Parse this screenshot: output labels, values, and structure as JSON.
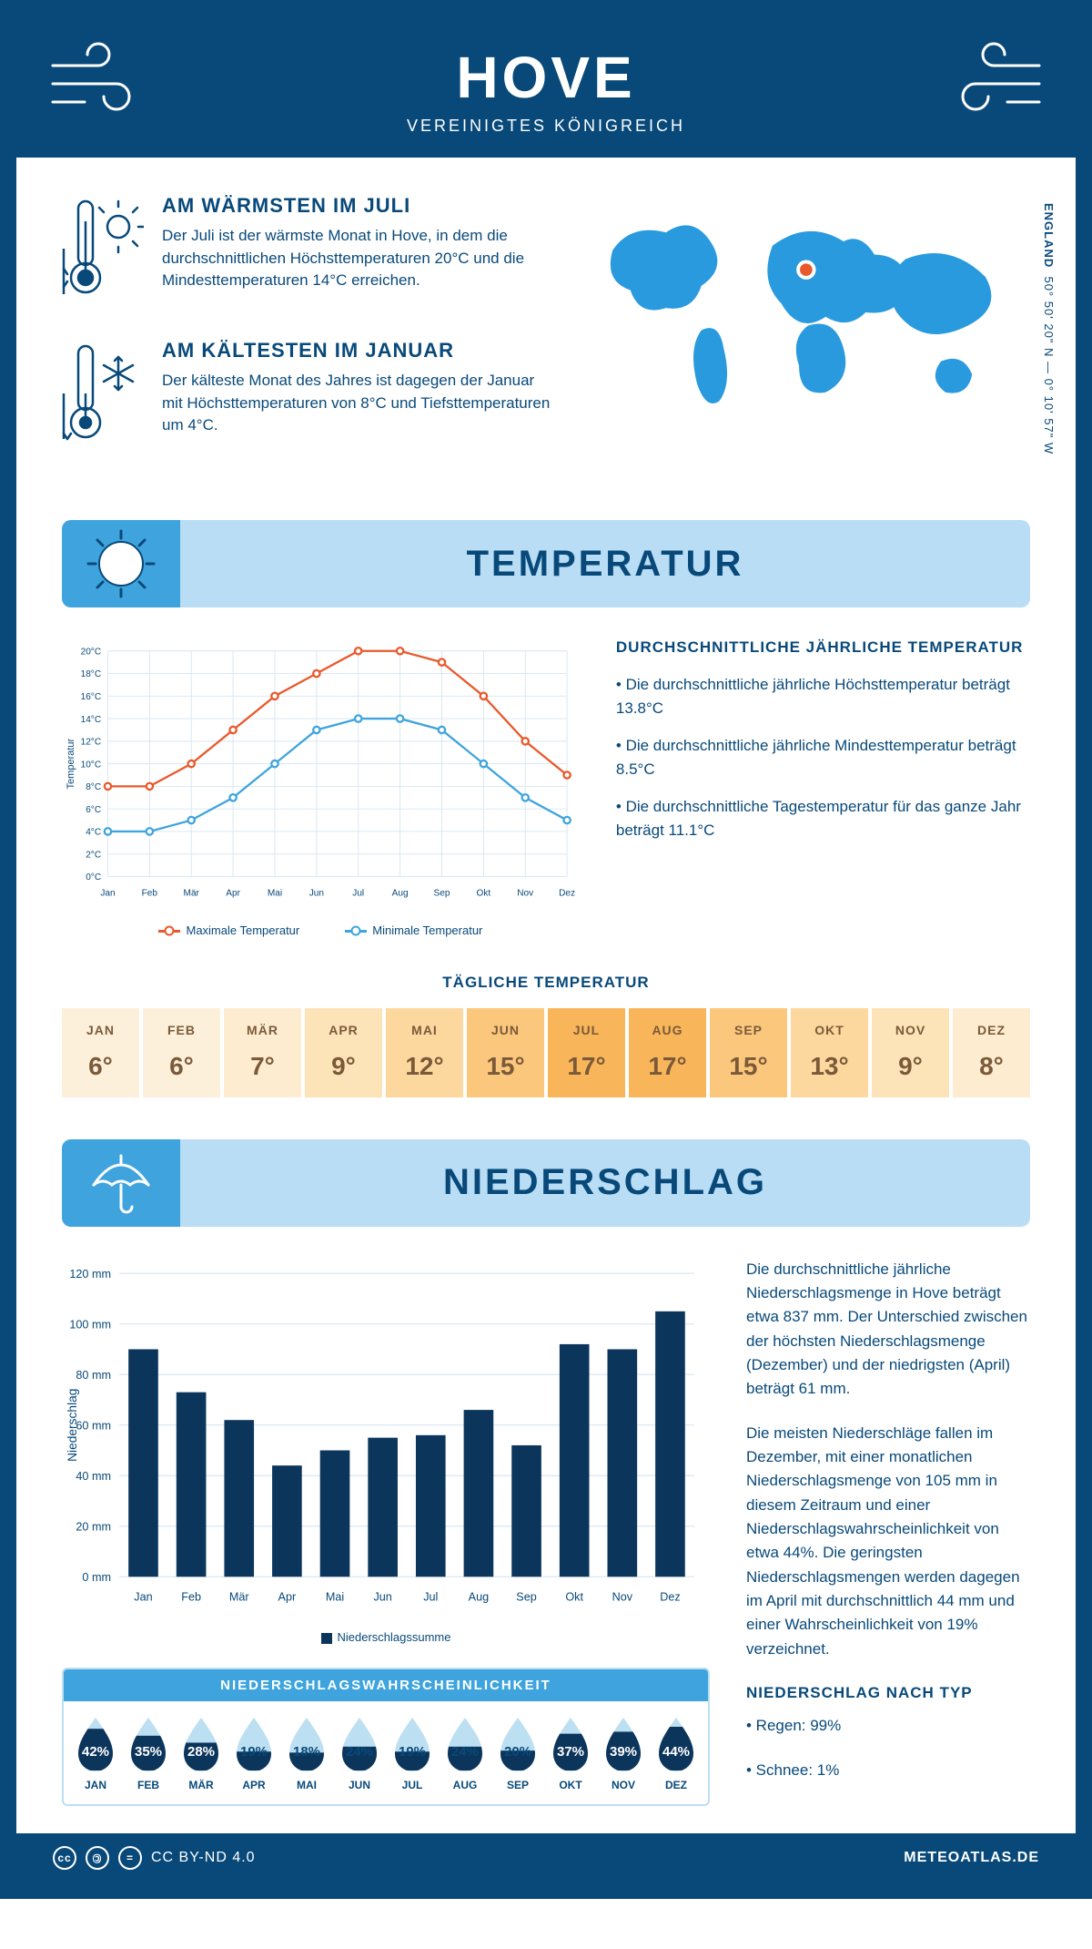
{
  "header": {
    "title": "HOVE",
    "subtitle": "VEREINIGTES KÖNIGREICH"
  },
  "coords": {
    "line": "50° 50' 20\" N — 0° 10' 57\" W",
    "country": "ENGLAND"
  },
  "facts": {
    "warm": {
      "title": "AM WÄRMSTEN IM JULI",
      "text": "Der Juli ist der wärmste Monat in Hove, in dem die durchschnittlichen Höchsttemperaturen 20°C und die Mindesttemperaturen 14°C erreichen."
    },
    "cold": {
      "title": "AM KÄLTESTEN IM JANUAR",
      "text": "Der kälteste Monat des Jahres ist dagegen der Januar mit Höchsttemperaturen von 8°C und Tiefsttemperaturen um 4°C."
    }
  },
  "sections": {
    "temp": "TEMPERATUR",
    "precip": "NIEDERSCHLAG"
  },
  "temp_chart": {
    "type": "line",
    "months": [
      "Jan",
      "Feb",
      "Mär",
      "Apr",
      "Mai",
      "Jun",
      "Jul",
      "Aug",
      "Sep",
      "Okt",
      "Nov",
      "Dez"
    ],
    "max_series": [
      8,
      8,
      10,
      13,
      16,
      18,
      20,
      20,
      19,
      16,
      12,
      9
    ],
    "min_series": [
      4,
      4,
      5,
      7,
      10,
      13,
      14,
      14,
      13,
      10,
      7,
      5
    ],
    "max_color": "#e8592b",
    "min_color": "#3fa4dd",
    "grid_color": "#d7e6f2",
    "ylim": [
      0,
      20
    ],
    "ytick_step": 2,
    "y_label": "Temperatur",
    "legend_max": "Maximale Temperatur",
    "legend_min": "Minimale Temperatur"
  },
  "temp_facts": {
    "heading": "DURCHSCHNITTLICHE JÄHRLICHE TEMPERATUR",
    "b1": "• Die durchschnittliche jährliche Höchsttemperatur beträgt 13.8°C",
    "b2": "• Die durchschnittliche jährliche Mindesttemperatur beträgt 8.5°C",
    "b3": "• Die durchschnittliche Tagestemperatur für das ganze Jahr beträgt 11.1°C"
  },
  "daily_temp": {
    "title": "TÄGLICHE TEMPERATUR",
    "months": [
      "JAN",
      "FEB",
      "MÄR",
      "APR",
      "MAI",
      "JUN",
      "JUL",
      "AUG",
      "SEP",
      "OKT",
      "NOV",
      "DEZ"
    ],
    "values": [
      "6°",
      "6°",
      "7°",
      "9°",
      "12°",
      "15°",
      "17°",
      "17°",
      "15°",
      "13°",
      "9°",
      "8°"
    ],
    "colors": [
      "#fdf0db",
      "#fdf0db",
      "#fdeccf",
      "#fde3b8",
      "#fcd79e",
      "#fbc77c",
      "#f9b55a",
      "#f9b55a",
      "#fbc77c",
      "#fcd79e",
      "#fde3b8",
      "#fdeccf"
    ]
  },
  "precip_chart": {
    "type": "bar",
    "months": [
      "Jan",
      "Feb",
      "Mär",
      "Apr",
      "Mai",
      "Jun",
      "Jul",
      "Aug",
      "Sep",
      "Okt",
      "Nov",
      "Dez"
    ],
    "values": [
      90,
      73,
      62,
      44,
      50,
      55,
      56,
      66,
      52,
      92,
      90,
      105
    ],
    "bar_color": "#0c355c",
    "grid_color": "#d7e6f2",
    "ylim": [
      0,
      120
    ],
    "ytick_step": 20,
    "y_label": "Niederschlag",
    "legend": "Niederschlagssumme"
  },
  "precip_text": {
    "p1": "Die durchschnittliche jährliche Niederschlagsmenge in Hove beträgt etwa 837 mm. Der Unterschied zwischen der höchsten Niederschlagsmenge (Dezember) und der niedrigsten (April) beträgt 61 mm.",
    "p2": "Die meisten Niederschläge fallen im Dezember, mit einer monatlichen Niederschlagsmenge von 105 mm in diesem Zeitraum und einer Niederschlagswahrscheinlichkeit von etwa 44%. Die geringsten Niederschlagsmengen werden dagegen im April mit durchschnittlich 44 mm und einer Wahrscheinlichkeit von 19% verzeichnet.",
    "type_head": "NIEDERSCHLAG NACH TYP",
    "type_b1": "• Regen: 99%",
    "type_b2": "• Schnee: 1%"
  },
  "prob": {
    "title": "NIEDERSCHLAGSWAHRSCHEINLICHKEIT",
    "months": [
      "JAN",
      "FEB",
      "MÄR",
      "APR",
      "MAI",
      "JUN",
      "JUL",
      "AUG",
      "SEP",
      "OKT",
      "NOV",
      "DEZ"
    ],
    "values": [
      42,
      35,
      28,
      19,
      18,
      24,
      19,
      24,
      20,
      37,
      39,
      44
    ],
    "fill_dark": "#0c355c",
    "fill_light": "#bcdff2"
  },
  "footer": {
    "license": "CC BY-ND 4.0",
    "site": "METEOATLAS.DE"
  }
}
